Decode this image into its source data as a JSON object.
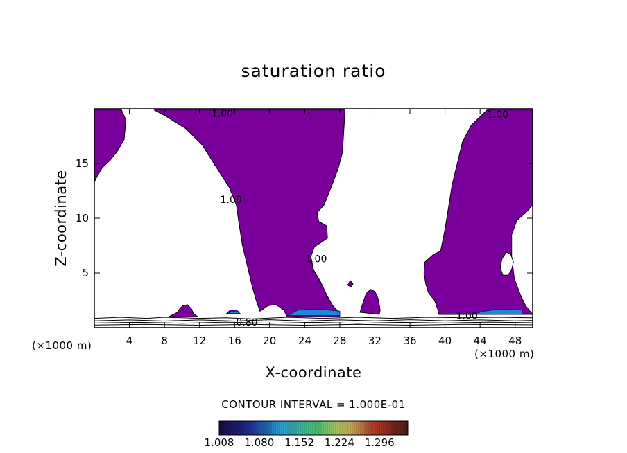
{
  "chart_data": {
    "type": "heatmap",
    "title": "saturation ratio",
    "xlabel": "X-coordinate",
    "ylabel": "Z-coordinate",
    "x_units": "(×1000 m)",
    "z_units": "(×1000 m)",
    "xlim": [
      0,
      50
    ],
    "ylim": [
      0,
      20
    ],
    "x_ticks": [
      4,
      8,
      12,
      16,
      20,
      24,
      28,
      32,
      36,
      40,
      44,
      48
    ],
    "y_ticks": [
      5,
      10,
      15
    ],
    "contour_interval_text": "CONTOUR INTERVAL = 1.000E-01",
    "contour_labels": [
      {
        "text": "1.00",
        "x": 14.6,
        "z": 19.6
      },
      {
        "text": "1.00",
        "x": 46.0,
        "z": 19.5
      },
      {
        "text": "1.00",
        "x": 15.6,
        "z": 11.7
      },
      {
        "text": "1.00",
        "x": 25.3,
        "z": 6.3
      },
      {
        "text": "0.80",
        "x": 17.4,
        "z": 0.5
      },
      {
        "text": "1.00",
        "x": 42.5,
        "z": 1.1
      }
    ],
    "colorbar": {
      "min": 1.008,
      "max": 1.296,
      "tick_labels": [
        "1.008",
        "1.080",
        "1.152",
        "1.224",
        "1.296"
      ],
      "colors": [
        "#1a0a3a",
        "#1c2f9a",
        "#2aa0d0",
        "#3fc27a",
        "#c6c15a",
        "#b03328",
        "#4a1a12"
      ]
    },
    "fill_color": "#7a009c",
    "fill_color_high": "#1e88d8",
    "regions": [
      {
        "name": "left-column",
        "points": [
          [
            0,
            19.9
          ],
          [
            3.1,
            19.9
          ],
          [
            3.6,
            19.0
          ],
          [
            3.4,
            17.2
          ],
          [
            2.6,
            16.1
          ],
          [
            1.8,
            15.3
          ],
          [
            0.9,
            14.6
          ],
          [
            0.3,
            13.8
          ],
          [
            0,
            13.3
          ]
        ]
      },
      {
        "name": "central-plume",
        "points": [
          [
            6.8,
            19.9
          ],
          [
            28.6,
            19.9
          ],
          [
            28.5,
            18.5
          ],
          [
            28.3,
            16.0
          ],
          [
            27.8,
            14.5
          ],
          [
            27.0,
            12.8
          ],
          [
            26.2,
            11.2
          ],
          [
            25.4,
            10.5
          ],
          [
            25.6,
            9.7
          ],
          [
            26.5,
            9.3
          ],
          [
            26.6,
            8.2
          ],
          [
            25.9,
            7.8
          ],
          [
            25.1,
            7.4
          ],
          [
            24.7,
            6.5
          ],
          [
            25.0,
            5.3
          ],
          [
            25.8,
            4.2
          ],
          [
            26.5,
            3.0
          ],
          [
            27.2,
            2.0
          ],
          [
            27.8,
            1.5
          ],
          [
            28.0,
            1.0
          ],
          [
            22.0,
            1.0
          ],
          [
            21.6,
            1.6
          ],
          [
            21.1,
            1.9
          ],
          [
            20.7,
            2.1
          ],
          [
            19.8,
            2.0
          ],
          [
            18.9,
            1.5
          ],
          [
            18.5,
            2.4
          ],
          [
            18.0,
            3.8
          ],
          [
            17.5,
            5.5
          ],
          [
            16.9,
            7.5
          ],
          [
            16.5,
            9.5
          ],
          [
            16.2,
            11.2
          ],
          [
            15.4,
            12.8
          ],
          [
            13.8,
            14.8
          ],
          [
            12.3,
            16.7
          ],
          [
            10.4,
            18.2
          ],
          [
            8.2,
            19.3
          ]
        ]
      },
      {
        "name": "right-plume",
        "points": [
          [
            44.8,
            19.9
          ],
          [
            50,
            19.9
          ],
          [
            50,
            11.2
          ],
          [
            49.2,
            10.5
          ],
          [
            48.2,
            9.8
          ],
          [
            47.6,
            8.5
          ],
          [
            47.6,
            6.5
          ],
          [
            47.9,
            4.5
          ],
          [
            48.6,
            3.0
          ],
          [
            49.2,
            2.0
          ],
          [
            49.7,
            1.5
          ],
          [
            50,
            1.2
          ],
          [
            39.3,
            1.2
          ],
          [
            39.2,
            1.6
          ],
          [
            38.8,
            2.5
          ],
          [
            38.1,
            3.2
          ],
          [
            37.8,
            4.0
          ],
          [
            37.6,
            5.0
          ],
          [
            37.7,
            6.0
          ],
          [
            38.7,
            6.7
          ],
          [
            39.5,
            7.0
          ],
          [
            40.0,
            9.0
          ],
          [
            40.4,
            11.0
          ],
          [
            40.8,
            13.0
          ],
          [
            41.4,
            15.0
          ],
          [
            42.0,
            17.0
          ],
          [
            43.0,
            18.5
          ]
        ]
      },
      {
        "name": "right-plume-hole",
        "hole": true,
        "points": [
          [
            47.0,
            6.9
          ],
          [
            47.5,
            6.7
          ],
          [
            47.8,
            6.0
          ],
          [
            47.6,
            5.3
          ],
          [
            47.2,
            4.8
          ],
          [
            46.6,
            4.8
          ],
          [
            46.3,
            5.5
          ],
          [
            46.5,
            6.3
          ]
        ]
      },
      {
        "name": "bump-11",
        "points": [
          [
            8.5,
            1.0
          ],
          [
            9.5,
            1.4
          ],
          [
            9.8,
            1.8
          ],
          [
            10.1,
            2.0
          ],
          [
            10.6,
            2.1
          ],
          [
            11.1,
            1.7
          ],
          [
            11.3,
            1.3
          ],
          [
            11.8,
            1.0
          ]
        ]
      },
      {
        "name": "bump-16",
        "points": [
          [
            15.1,
            1.3
          ],
          [
            15.5,
            1.6
          ],
          [
            16.2,
            1.6
          ],
          [
            16.6,
            1.3
          ]
        ]
      },
      {
        "name": "bump-32",
        "points": [
          [
            30.3,
            1.4
          ],
          [
            30.7,
            2.4
          ],
          [
            31.0,
            3.1
          ],
          [
            31.5,
            3.5
          ],
          [
            32.0,
            3.3
          ],
          [
            32.4,
            2.6
          ],
          [
            32.6,
            1.6
          ],
          [
            32.5,
            1.2
          ]
        ]
      },
      {
        "name": "bump-29",
        "points": [
          [
            28.9,
            3.9
          ],
          [
            29.2,
            4.3
          ],
          [
            29.5,
            4.0
          ],
          [
            29.3,
            3.7
          ]
        ]
      }
    ],
    "high_regions": [
      {
        "name": "high-23-28",
        "points": [
          [
            22.1,
            1.1
          ],
          [
            28.0,
            1.1
          ],
          [
            28.0,
            1.5
          ],
          [
            25.5,
            1.7
          ],
          [
            23.2,
            1.6
          ]
        ]
      },
      {
        "name": "high-43-48",
        "points": [
          [
            43.0,
            1.2
          ],
          [
            48.8,
            1.2
          ],
          [
            48.8,
            1.6
          ],
          [
            46.3,
            1.7
          ],
          [
            44.5,
            1.5
          ]
        ]
      },
      {
        "name": "high-16",
        "points": [
          [
            15.3,
            1.3
          ],
          [
            16.5,
            1.3
          ],
          [
            16.4,
            1.5
          ],
          [
            15.6,
            1.5
          ]
        ]
      }
    ],
    "surface_contours": [
      [
        [
          0,
          0.85
        ],
        [
          3,
          0.95
        ],
        [
          6,
          0.85
        ],
        [
          8,
          0.95
        ],
        [
          12,
          0.85
        ],
        [
          15,
          0.9
        ],
        [
          18,
          0.8
        ],
        [
          22,
          0.95
        ],
        [
          26,
          0.85
        ],
        [
          30,
          0.95
        ],
        [
          34,
          0.85
        ],
        [
          38,
          0.95
        ],
        [
          42,
          0.9
        ],
        [
          46,
          0.95
        ],
        [
          50,
          0.9
        ]
      ],
      [
        [
          0,
          0.62
        ],
        [
          4,
          0.7
        ],
        [
          8,
          0.6
        ],
        [
          12,
          0.7
        ],
        [
          16,
          0.6
        ],
        [
          20,
          0.72
        ],
        [
          24,
          0.6
        ],
        [
          28,
          0.7
        ],
        [
          32,
          0.62
        ],
        [
          36,
          0.72
        ],
        [
          40,
          0.62
        ],
        [
          44,
          0.7
        ],
        [
          48,
          0.62
        ],
        [
          50,
          0.66
        ]
      ],
      [
        [
          0,
          0.42
        ],
        [
          5,
          0.48
        ],
        [
          10,
          0.4
        ],
        [
          15,
          0.5
        ],
        [
          20,
          0.4
        ],
        [
          25,
          0.48
        ],
        [
          30,
          0.4
        ],
        [
          35,
          0.48
        ],
        [
          40,
          0.42
        ],
        [
          45,
          0.5
        ],
        [
          50,
          0.44
        ]
      ],
      [
        [
          0,
          0.24
        ],
        [
          6,
          0.3
        ],
        [
          12,
          0.22
        ],
        [
          18,
          0.3
        ],
        [
          24,
          0.22
        ],
        [
          30,
          0.3
        ],
        [
          36,
          0.22
        ],
        [
          42,
          0.3
        ],
        [
          50,
          0.26
        ]
      ]
    ]
  }
}
